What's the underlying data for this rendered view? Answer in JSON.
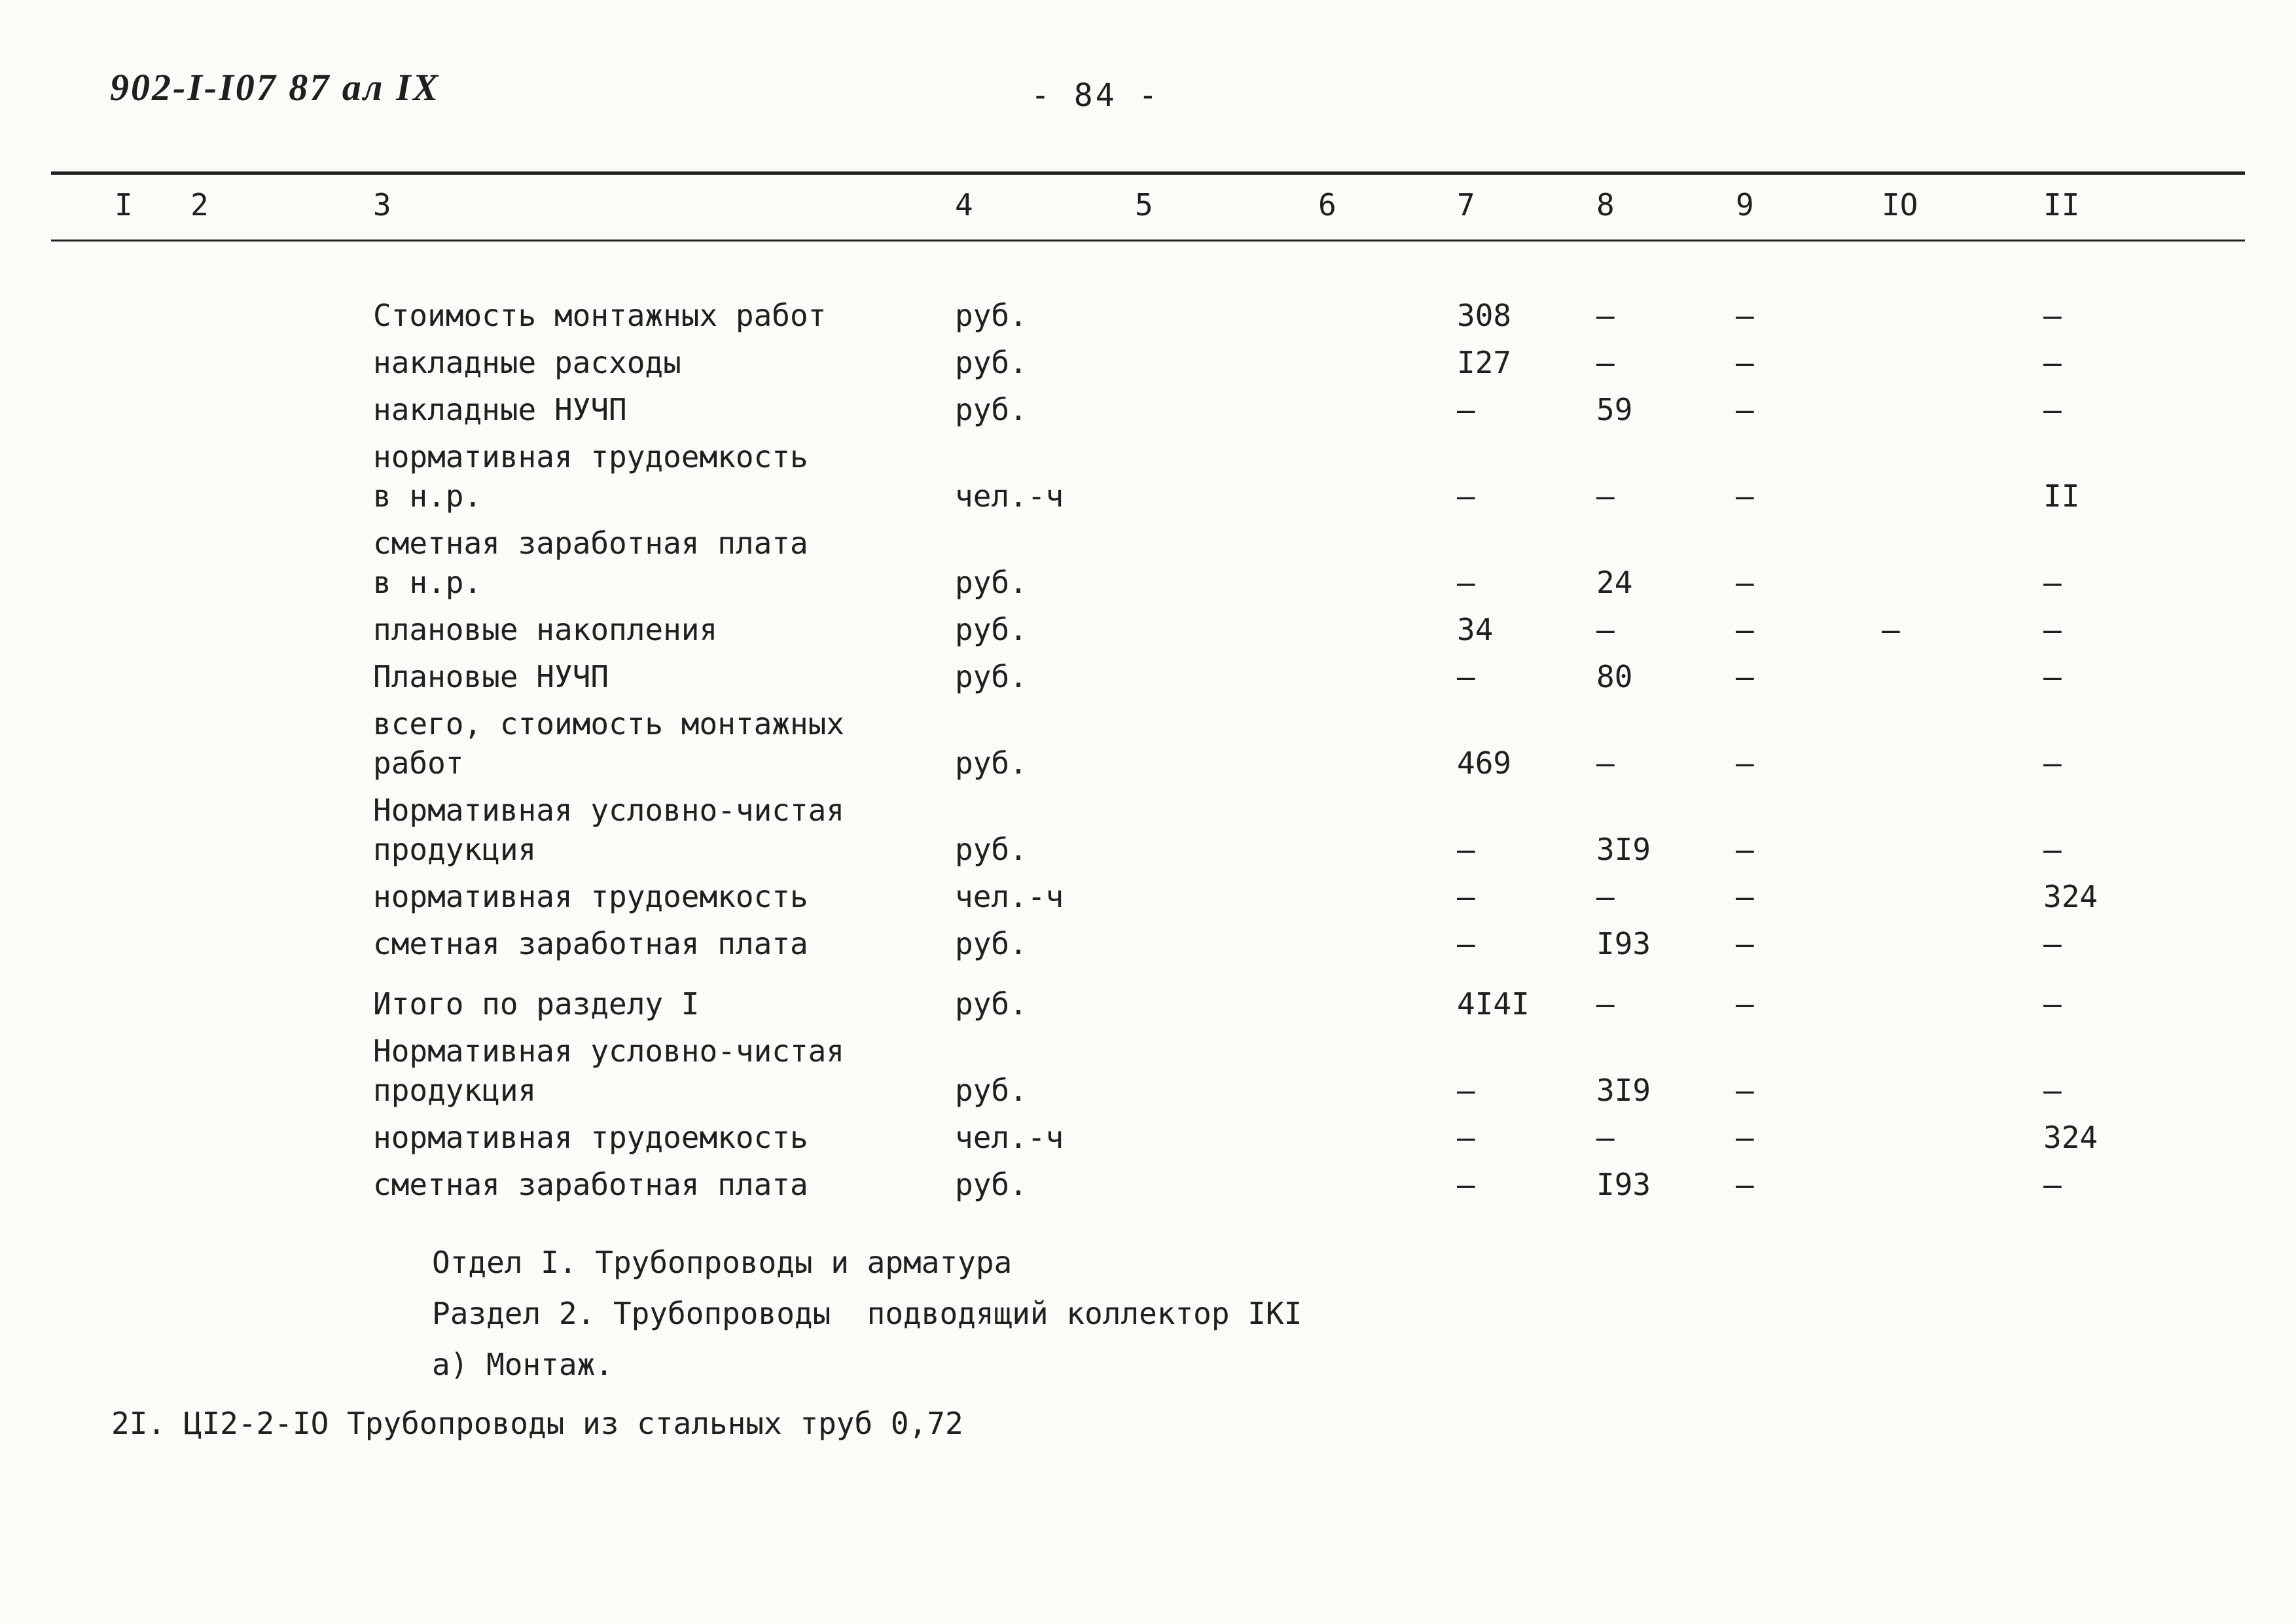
{
  "page": {
    "doc_code": "902-I-I07 87 ал IX",
    "page_number": "- 84 -"
  },
  "table": {
    "column_headers": [
      "I",
      "2",
      "3",
      "4",
      "5",
      "6",
      "7",
      "8",
      "9",
      "IO",
      "II"
    ],
    "rows": [
      {
        "label": "Стоимость монтажных работ",
        "unit": "руб.",
        "c7": "308",
        "c8": "–",
        "c9": "–",
        "c10": "",
        "c11": "–"
      },
      {
        "label": "накладные расходы",
        "unit": "руб.",
        "c7": "I27",
        "c8": "–",
        "c9": "–",
        "c10": "",
        "c11": "–"
      },
      {
        "label": "накладные НУЧП",
        "unit": "руб.",
        "c7": "–",
        "c8": "59",
        "c9": "–",
        "c10": "",
        "c11": "–"
      },
      {
        "label": "нормативная трудоемкость\nв н.р.",
        "unit": "чел.-ч",
        "c7": "–",
        "c8": "–",
        "c9": "–",
        "c10": "",
        "c11": "II"
      },
      {
        "label": "сметная заработная плата\nв н.р.",
        "unit": "руб.",
        "c7": "–",
        "c8": "24",
        "c9": "–",
        "c10": "",
        "c11": "–"
      },
      {
        "label": "плановые накопления",
        "unit": "руб.",
        "c7": "34",
        "c8": "–",
        "c9": "–",
        "c10": "–",
        "c11": "–"
      },
      {
        "label": "Плановые НУЧП",
        "unit": "руб.",
        "c7": "–",
        "c8": "80",
        "c9": "–",
        "c10": "",
        "c11": "–"
      },
      {
        "label": "всего, стоимость монтажных\nработ",
        "unit": "руб.",
        "c7": "469",
        "c8": "–",
        "c9": "–",
        "c10": "",
        "c11": "–"
      },
      {
        "label": "Нормативная условно-чистая\nпродукция",
        "unit": "руб.",
        "c7": "–",
        "c8": "3I9",
        "c9": "–",
        "c10": "",
        "c11": "–"
      },
      {
        "label": "нормативная трудоемкость",
        "unit": "чел.-ч",
        "c7": "–",
        "c8": "–",
        "c9": "–",
        "c10": "",
        "c11": "324"
      },
      {
        "label": "сметная заработная плата",
        "unit": "руб.",
        "c7": "–",
        "c8": "I93",
        "c9": "–",
        "c10": "",
        "c11": "–"
      },
      {
        "label": "Итого по разделу I",
        "unit": "руб.",
        "c7": "4I4I",
        "c8": "–",
        "c9": "–",
        "c10": "",
        "c11": "–",
        "gap_before": true
      },
      {
        "label": "Нормативная условно-чистая\nпродукция",
        "unit": "руб.",
        "c7": "–",
        "c8": "3I9",
        "c9": "–",
        "c10": "",
        "c11": "–"
      },
      {
        "label": "нормативная трудоемкость",
        "unit": "чел.-ч",
        "c7": "–",
        "c8": "–",
        "c9": "–",
        "c10": "",
        "c11": "324"
      },
      {
        "label": "сметная заработная плата",
        "unit": "руб.",
        "c7": "–",
        "c8": "I93",
        "c9": "–",
        "c10": "",
        "c11": "–"
      }
    ]
  },
  "footer": {
    "lines": [
      "Отдел I. Трубопроводы и арматура",
      "Раздел 2. Трубопроводы  подводящий коллектор IКI",
      "а) Монтаж."
    ],
    "bottom_line": "2I. ЦI2-2-IO Трубопроводы из стальных труб 0,72"
  }
}
